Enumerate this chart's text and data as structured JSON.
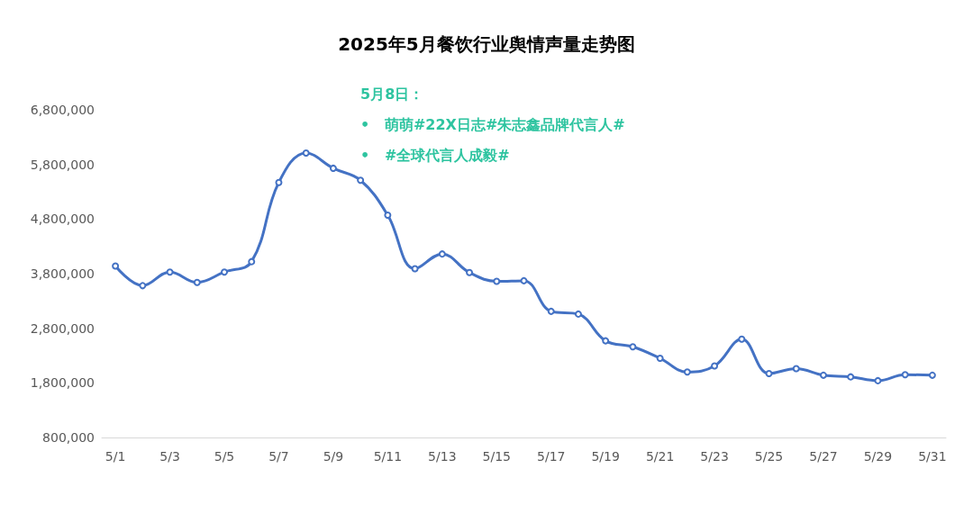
{
  "chart_data": {
    "type": "line",
    "title": "2025年5月餐饮行业舆情声量走势图",
    "categories": [
      "5/1",
      null,
      "5/3",
      null,
      "5/5",
      null,
      "5/7",
      null,
      "5/9",
      null,
      "5/11",
      null,
      "5/13",
      null,
      "5/15",
      null,
      "5/17",
      null,
      "5/19",
      null,
      "5/21",
      null,
      "5/23",
      null,
      "5/25",
      null,
      "5/27",
      null,
      "5/29",
      null,
      "5/31"
    ],
    "series": [
      {
        "color": "#4472c4",
        "values": [
          3940000,
          3580000,
          3830000,
          3640000,
          3830000,
          4020000,
          5470000,
          6010000,
          5730000,
          5510000,
          4870000,
          3890000,
          4160000,
          3820000,
          3660000,
          3670000,
          3110000,
          3060000,
          2570000,
          2460000,
          2250000,
          2000000,
          2110000,
          2600000,
          1970000,
          2060000,
          1940000,
          1910000,
          1840000,
          1950000,
          1940000
        ]
      }
    ],
    "ylim": [
      800000,
      6800000
    ],
    "yticks": [
      {
        "value": 800000,
        "label": "800,000"
      },
      {
        "value": 1800000,
        "label": "1,800,000"
      },
      {
        "value": 2800000,
        "label": "2,800,000"
      },
      {
        "value": 3800000,
        "label": "3,800,000"
      },
      {
        "value": 4800000,
        "label": "4,800,000"
      },
      {
        "value": 5800000,
        "label": "5,800,000"
      },
      {
        "value": 6800000,
        "label": "6,800,000"
      }
    ],
    "grid": false,
    "marker": "circle",
    "line_style": "solid",
    "annotations": [
      "5月8日：",
      "•   萌萌#22X日志#朱志鑫品牌代言人#",
      "•   #全球代言人成毅#"
    ]
  }
}
